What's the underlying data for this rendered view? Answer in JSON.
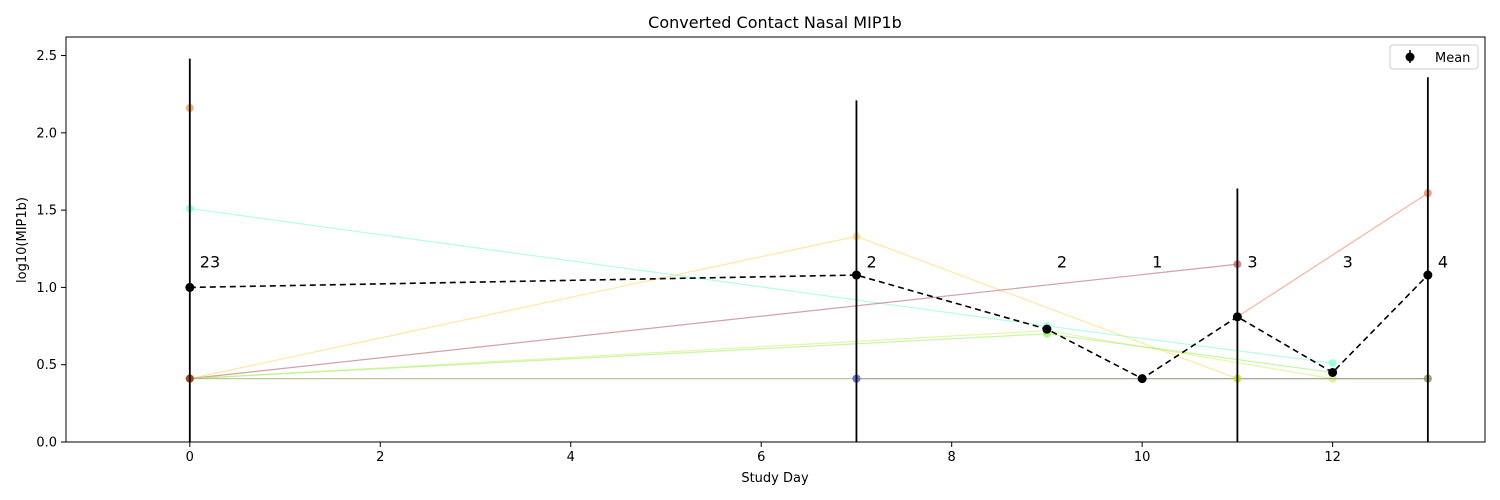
{
  "chart_data": {
    "type": "line",
    "title": "Converted Contact Nasal MIP1b",
    "xlabel": "Study Day",
    "ylabel": "log10(MIP1b)",
    "xlim": [
      -1.3,
      13.6
    ],
    "ylim": [
      0,
      2.62
    ],
    "xticks": [
      0,
      2,
      4,
      6,
      8,
      10,
      12
    ],
    "yticks": [
      0.0,
      0.5,
      1.0,
      1.5,
      2.0,
      2.5
    ],
    "grid": false,
    "legend": {
      "position": "top-right",
      "entries": [
        "Mean"
      ]
    },
    "mean_series": {
      "name": "Mean",
      "color": "#000000",
      "x": [
        0,
        7,
        9,
        10,
        11,
        12,
        13
      ],
      "y": [
        1.0,
        1.08,
        0.73,
        0.41,
        0.81,
        0.45,
        1.08
      ],
      "err": [
        1.48,
        1.13,
        0,
        0,
        0.83,
        0,
        1.28
      ]
    },
    "counts": [
      {
        "x": 0,
        "text": "23"
      },
      {
        "x": 7,
        "text": "2"
      },
      {
        "x": 9,
        "text": "2"
      },
      {
        "x": 10,
        "text": "1"
      },
      {
        "x": 11,
        "text": "3"
      },
      {
        "x": 12,
        "text": "3"
      },
      {
        "x": 13,
        "text": "4"
      }
    ],
    "subject_series": [
      {
        "color": "#7fffd4",
        "x": [
          0,
          9,
          12
        ],
        "y": [
          1.51,
          0.75,
          0.51
        ]
      },
      {
        "color": "#ffd966",
        "x": [
          0,
          7,
          11
        ],
        "y": [
          0.41,
          1.33,
          0.41
        ]
      },
      {
        "color": "#b5626b",
        "x": [
          0,
          11
        ],
        "y": [
          0.41,
          1.15
        ]
      },
      {
        "color": "#f08060",
        "x": [
          11,
          13
        ],
        "y": [
          0.81,
          1.61
        ]
      },
      {
        "color": "#d4f070",
        "x": [
          0,
          9,
          12,
          13
        ],
        "y": [
          0.41,
          0.72,
          0.41,
          0.41
        ]
      },
      {
        "color": "#a0f070",
        "x": [
          0,
          9,
          12
        ],
        "y": [
          0.41,
          0.7,
          0.45
        ]
      },
      {
        "color": "#9090e0",
        "x": [
          7,
          13
        ],
        "y": [
          0.41,
          0.41
        ]
      },
      {
        "color": "#99a060",
        "x": [
          0,
          13
        ],
        "y": [
          0.41,
          0.41
        ]
      },
      {
        "color": "#e6a040",
        "x": [
          0
        ],
        "y": [
          2.16
        ]
      },
      {
        "color": "#a02010",
        "x": [
          0
        ],
        "y": [
          0.41
        ]
      },
      {
        "color": "#5060d0",
        "x": [
          7
        ],
        "y": [
          0.41
        ]
      },
      {
        "color": "#c8e040",
        "x": [
          11
        ],
        "y": [
          0.41
        ]
      }
    ]
  }
}
